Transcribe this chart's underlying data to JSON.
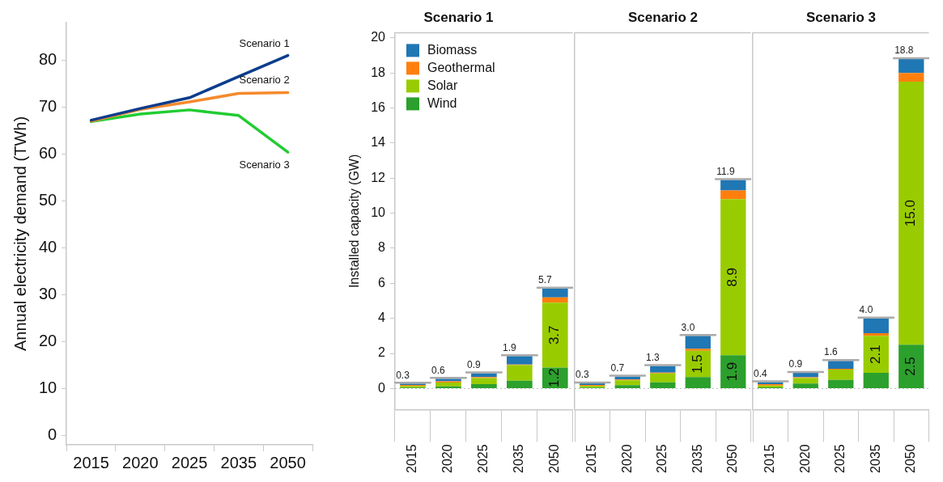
{
  "chart_data": [
    {
      "type": "line",
      "ylabel": "Annual electricity demand (TWh)",
      "categories": [
        "2015",
        "2020",
        "2025",
        "2035",
        "2050"
      ],
      "ylim": [
        -2,
        88
      ],
      "yticks": [
        0,
        10,
        20,
        30,
        40,
        50,
        60,
        70,
        80
      ],
      "grid": false,
      "marker": "none",
      "series": [
        {
          "name": "Scenario 1",
          "color": "#0b3d8c",
          "values": [
            67.2,
            69.7,
            72.0,
            76.5,
            81.0
          ]
        },
        {
          "name": "Scenario 2",
          "color": "#f58a2c",
          "values": [
            67.0,
            69.5,
            71.1,
            72.9,
            73.1
          ]
        },
        {
          "name": "Scenario 3",
          "color": "#22cc33",
          "values": [
            66.9,
            68.5,
            69.4,
            68.2,
            60.4
          ]
        }
      ]
    },
    {
      "type": "bar",
      "title": "Scenario 1",
      "stacked": true,
      "categories": [
        "2015",
        "2020",
        "2025",
        "2035",
        "2050"
      ],
      "ylabel": "Installed capacity (GW)",
      "ylim": [
        -1.2,
        20.3
      ],
      "yticks": [
        0,
        2,
        4,
        6,
        8,
        10,
        12,
        14,
        16,
        18,
        20
      ],
      "grid": false,
      "legend": "top left",
      "totals": [
        "0.3",
        "0.6",
        "0.9",
        "1.9",
        "5.7"
      ],
      "ref_lines": [
        {
          "axis": "y",
          "value": 0,
          "line_style": "dotted",
          "color": "#bbbbbb"
        }
      ],
      "series": [
        {
          "name": "Wind",
          "color": "#2ca02c",
          "values": [
            0.05,
            0.12,
            0.25,
            0.44,
            1.2
          ],
          "value_labels": [
            null,
            null,
            null,
            null,
            "1.2"
          ]
        },
        {
          "name": "Solar",
          "color": "#99cc00",
          "values": [
            0.1,
            0.22,
            0.34,
            0.89,
            3.7
          ],
          "value_labels": [
            null,
            null,
            null,
            null,
            "3.7"
          ]
        },
        {
          "name": "Geothermal",
          "color": "#ff7f0e",
          "values": [
            0.05,
            0.07,
            0.06,
            0.04,
            0.3
          ]
        },
        {
          "name": "Biomass",
          "color": "#1f77b4",
          "values": [
            0.08,
            0.15,
            0.22,
            0.48,
            0.5
          ]
        }
      ]
    },
    {
      "type": "bar",
      "title": "Scenario 2",
      "stacked": true,
      "categories": [
        "2015",
        "2020",
        "2025",
        "2035",
        "2050"
      ],
      "ylim": [
        -1.2,
        20.3
      ],
      "yticks": [
        0,
        2,
        4,
        6,
        8,
        10,
        12,
        14,
        16,
        18,
        20
      ],
      "tick_labels": "x",
      "grid": false,
      "totals": [
        "0.3",
        "0.7",
        "1.3",
        "3.0",
        "11.9"
      ],
      "ref_lines": [
        {
          "axis": "y",
          "value": 0,
          "line_style": "dotted",
          "color": "#bbbbbb"
        }
      ],
      "series": [
        {
          "color": "#2ca02c",
          "values": [
            0.05,
            0.19,
            0.35,
            0.65,
            1.9
          ],
          "value_labels": [
            null,
            null,
            null,
            null,
            "1.9"
          ]
        },
        {
          "color": "#99cc00",
          "values": [
            0.1,
            0.28,
            0.51,
            1.5,
            8.9
          ],
          "value_labels": [
            null,
            null,
            null,
            "1.5",
            "8.9"
          ]
        },
        {
          "color": "#ff7f0e",
          "values": [
            0.05,
            0.05,
            0.05,
            0.12,
            0.5
          ]
        },
        {
          "color": "#1f77b4",
          "values": [
            0.1,
            0.17,
            0.38,
            0.73,
            0.6
          ]
        }
      ]
    },
    {
      "type": "bar",
      "title": "Scenario 3",
      "stacked": true,
      "categories": [
        "2015",
        "2020",
        "2025",
        "2035",
        "2050"
      ],
      "ylim": [
        -1.2,
        20.3
      ],
      "yticks": [
        0,
        2,
        4,
        6,
        8,
        10,
        12,
        14,
        16,
        18,
        20
      ],
      "tick_labels": "x",
      "grid": false,
      "totals": [
        "0.4",
        "0.9",
        "1.6",
        "4.0",
        "18.8"
      ],
      "ref_lines": [
        {
          "axis": "y",
          "value": 0,
          "line_style": "dotted",
          "color": "#bbbbbb"
        }
      ],
      "series": [
        {
          "color": "#2ca02c",
          "values": [
            0.07,
            0.28,
            0.49,
            0.9,
            2.5
          ],
          "value_labels": [
            null,
            null,
            null,
            null,
            "2.5"
          ]
        },
        {
          "color": "#99cc00",
          "values": [
            0.1,
            0.31,
            0.59,
            2.1,
            15.0
          ],
          "value_labels": [
            null,
            null,
            null,
            "2.1",
            "15.0"
          ]
        },
        {
          "color": "#ff7f0e",
          "values": [
            0.08,
            0.05,
            0.05,
            0.15,
            0.5
          ]
        },
        {
          "color": "#1f77b4",
          "values": [
            0.12,
            0.25,
            0.45,
            0.85,
            0.8
          ]
        }
      ]
    }
  ]
}
